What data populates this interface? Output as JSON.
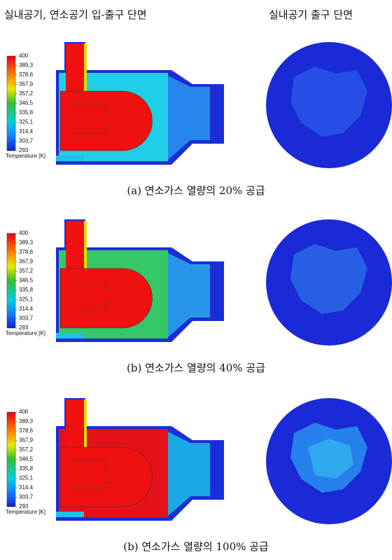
{
  "headers": [
    "실내공기, 연소공기 입-출구 단면",
    "실내공기 출구 단면"
  ],
  "colorbar": {
    "ticks": [
      "400",
      "389,3",
      "378,6",
      "367,9",
      "357,2",
      "346,5",
      "335,8",
      "325,1",
      "314,4",
      "303,7",
      "293"
    ],
    "label": "Temperature [K]"
  },
  "panels": [
    {
      "caption": "(a) 연소가스 열량의 20% 공급"
    },
    {
      "caption": "(b) 연소가스 열량의 40% 공급"
    },
    {
      "caption": "(b) 연소가스 열량의 100% 공급"
    }
  ]
}
